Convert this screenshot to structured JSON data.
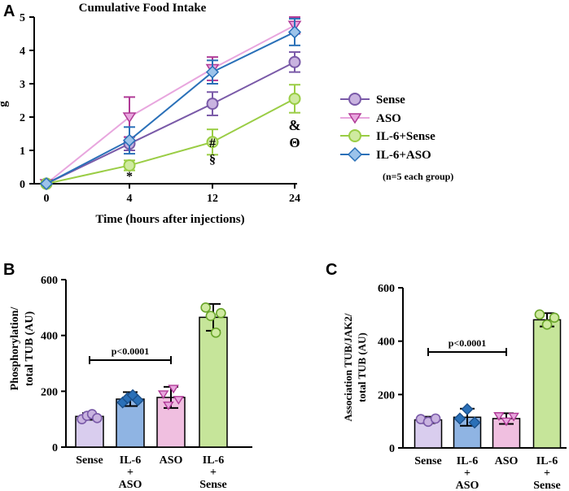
{
  "chart_data": [
    {
      "panel": "A",
      "type": "line",
      "title": "Cumulative Food Intake",
      "xlabel": "Time (hours after injections)",
      "ylabel": "g",
      "x": [
        0,
        4,
        12,
        24
      ],
      "x_tick_labels": [
        "0",
        "4",
        "12",
        "24"
      ],
      "y_ticks": [
        "0",
        "1",
        "2",
        "3",
        "4",
        "5"
      ],
      "ylim": [
        0,
        5
      ],
      "series": [
        {
          "name": "Sense",
          "values": [
            0,
            1.2,
            2.4,
            3.65
          ],
          "errors": [
            0,
            0.2,
            0.35,
            0.3
          ],
          "color": "#7a5aa8",
          "fill": "#c9b3e0",
          "marker": "circle"
        },
        {
          "name": "ASO",
          "values": [
            0,
            2.0,
            3.45,
            4.75
          ],
          "errors": [
            0,
            0.6,
            0.35,
            0.25
          ],
          "color": "#b03a96",
          "fill": "#e8a6de",
          "marker": "triangle-down"
        },
        {
          "name": "IL-6+Sense",
          "values": [
            0,
            0.55,
            1.25,
            2.55
          ],
          "errors": [
            0,
            0.15,
            0.38,
            0.42
          ],
          "color": "#9acd45",
          "fill": "#cfeaa0",
          "marker": "circle"
        },
        {
          "name": "IL-6+ASO",
          "values": [
            0,
            1.3,
            3.35,
            4.55
          ],
          "errors": [
            0,
            0.4,
            0.35,
            0.4
          ],
          "color": "#2a70b8",
          "fill": "#9cc3ea",
          "marker": "diamond"
        }
      ],
      "annotations": [
        {
          "x": 4,
          "text": "*"
        },
        {
          "x": 12,
          "text": "#"
        },
        {
          "x": 12,
          "text": "§"
        },
        {
          "x": 24,
          "text": "&"
        },
        {
          "x": 24,
          "text": "Θ"
        }
      ],
      "legend_note": "(n=5 each group)"
    },
    {
      "panel": "B",
      "type": "bar",
      "ylabel_line1": "Phosphorylation/",
      "ylabel_line2": "total TUB (AU)",
      "categories": [
        {
          "lines": [
            "Sense"
          ]
        },
        {
          "lines": [
            "IL-6",
            "+",
            "ASO"
          ]
        },
        {
          "lines": [
            "ASO"
          ]
        },
        {
          "lines": [
            "IL-6",
            "+",
            "Sense"
          ]
        }
      ],
      "values": [
        110,
        172,
        178,
        465
      ],
      "errors": [
        12,
        25,
        38,
        48
      ],
      "points": [
        [
          100,
          112,
          118,
          104
        ],
        [
          160,
          176,
          186,
          168
        ],
        [
          190,
          150,
          210,
          170
        ],
        [
          500,
          470,
          410,
          480
        ]
      ],
      "markers": [
        "circle",
        "diamond",
        "triangle-down",
        "circle"
      ],
      "y_ticks": [
        "0",
        "200",
        "400",
        "600"
      ],
      "ylim": [
        0,
        600
      ],
      "significance": "p<0.0001"
    },
    {
      "panel": "C",
      "type": "bar",
      "ylabel_line1": "Association TUB/JAK2/",
      "ylabel_line2": "total TUB (AU)",
      "categories": [
        {
          "lines": [
            "Sense"
          ]
        },
        {
          "lines": [
            "IL-6",
            "+",
            "ASO"
          ]
        },
        {
          "lines": [
            "ASO"
          ]
        },
        {
          "lines": [
            "IL-6",
            "+",
            "Sense"
          ]
        }
      ],
      "values": [
        105,
        115,
        110,
        480
      ],
      "errors": [
        12,
        32,
        20,
        25
      ],
      "points": [
        [
          108,
          98,
          110
        ],
        [
          110,
          145,
          95
        ],
        [
          120,
          100,
          118
        ],
        [
          500,
          462,
          488
        ]
      ],
      "markers": [
        "circle",
        "diamond",
        "triangle-down",
        "circle"
      ],
      "y_ticks": [
        "0",
        "200",
        "400",
        "600"
      ],
      "ylim": [
        0,
        600
      ],
      "significance": "p<0.0001"
    }
  ],
  "bar_colors": [
    "#d9cdee",
    "#8fb4e3",
    "#f0bfe0",
    "#c6e59a"
  ],
  "marker_fills": [
    "#c9b3e0",
    "#2a70b8",
    "#e8a6de",
    "#cfeaa0"
  ]
}
